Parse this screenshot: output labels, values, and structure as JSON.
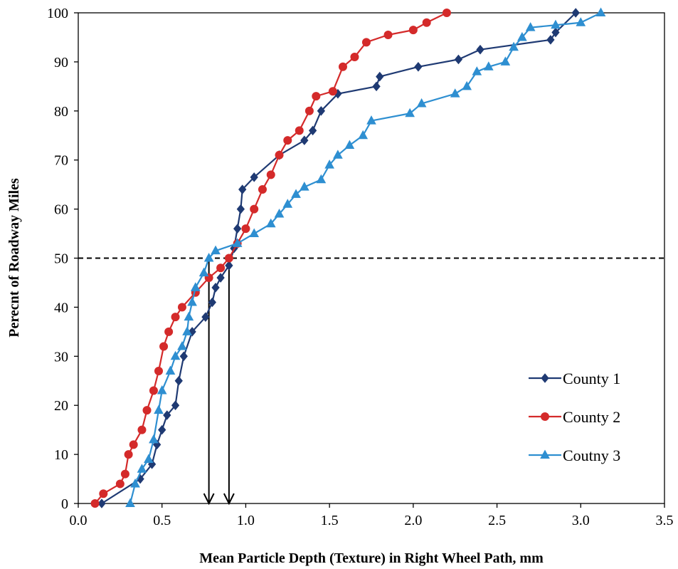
{
  "chart_data": {
    "type": "line",
    "xlabel": "Mean Particle Depth (Texture) in Right Wheel Path, mm",
    "ylabel": "Perecnt of Roadway Miles",
    "xlim": [
      0,
      3.5
    ],
    "ylim": [
      0,
      100
    ],
    "x_ticks": [
      "0.0",
      "0.5",
      "1.0",
      "1.5",
      "2.0",
      "2.5",
      "3.0",
      "3.5"
    ],
    "y_ticks": [
      "0",
      "10",
      "20",
      "30",
      "40",
      "50",
      "60",
      "70",
      "80",
      "90",
      "100"
    ],
    "grid": false,
    "legend_position": "bottom-right",
    "reference_line": {
      "y": 50,
      "style": "dashed"
    },
    "arrows": [
      {
        "x": 0.78,
        "from_y": 50,
        "to_y": 0
      },
      {
        "x": 0.9,
        "from_y": 50,
        "to_y": 0
      }
    ],
    "series": [
      {
        "name": "County 1",
        "color": "#1f3a73",
        "marker": "diamond",
        "points": [
          [
            0.14,
            0
          ],
          [
            0.37,
            5
          ],
          [
            0.44,
            8
          ],
          [
            0.47,
            12
          ],
          [
            0.5,
            15
          ],
          [
            0.53,
            18
          ],
          [
            0.58,
            20
          ],
          [
            0.6,
            25
          ],
          [
            0.63,
            30
          ],
          [
            0.68,
            35
          ],
          [
            0.76,
            38
          ],
          [
            0.8,
            41
          ],
          [
            0.82,
            44
          ],
          [
            0.85,
            46
          ],
          [
            0.9,
            48.5
          ],
          [
            0.93,
            52
          ],
          [
            0.95,
            56
          ],
          [
            0.97,
            60
          ],
          [
            0.98,
            64
          ],
          [
            1.05,
            66.5
          ],
          [
            1.2,
            71
          ],
          [
            1.35,
            74
          ],
          [
            1.4,
            76
          ],
          [
            1.45,
            80
          ],
          [
            1.55,
            83.5
          ],
          [
            1.78,
            85
          ],
          [
            1.8,
            87
          ],
          [
            2.03,
            89
          ],
          [
            2.27,
            90.5
          ],
          [
            2.4,
            92.5
          ],
          [
            2.82,
            94.5
          ],
          [
            2.85,
            96
          ],
          [
            2.97,
            100
          ]
        ]
      },
      {
        "name": "County 2",
        "color": "#d42a2a",
        "marker": "circle",
        "points": [
          [
            0.1,
            0
          ],
          [
            0.15,
            2
          ],
          [
            0.25,
            4
          ],
          [
            0.28,
            6
          ],
          [
            0.3,
            10
          ],
          [
            0.33,
            12
          ],
          [
            0.38,
            15
          ],
          [
            0.41,
            19
          ],
          [
            0.45,
            23
          ],
          [
            0.48,
            27
          ],
          [
            0.51,
            32
          ],
          [
            0.54,
            35
          ],
          [
            0.58,
            38
          ],
          [
            0.62,
            40
          ],
          [
            0.7,
            43
          ],
          [
            0.78,
            46
          ],
          [
            0.85,
            48
          ],
          [
            0.9,
            50
          ],
          [
            0.95,
            53
          ],
          [
            1.0,
            56
          ],
          [
            1.05,
            60
          ],
          [
            1.1,
            64
          ],
          [
            1.15,
            67
          ],
          [
            1.2,
            71
          ],
          [
            1.25,
            74
          ],
          [
            1.32,
            76
          ],
          [
            1.38,
            80
          ],
          [
            1.42,
            83
          ],
          [
            1.52,
            84
          ],
          [
            1.58,
            89
          ],
          [
            1.65,
            91
          ],
          [
            1.72,
            94
          ],
          [
            1.85,
            95.5
          ],
          [
            2.0,
            96.5
          ],
          [
            2.08,
            98
          ],
          [
            2.2,
            100
          ]
        ]
      },
      {
        "name": "Coutny 3",
        "color": "#2e8fd1",
        "marker": "triangle",
        "points": [
          [
            0.31,
            0
          ],
          [
            0.34,
            4
          ],
          [
            0.38,
            7
          ],
          [
            0.42,
            9
          ],
          [
            0.45,
            13
          ],
          [
            0.48,
            19
          ],
          [
            0.5,
            23
          ],
          [
            0.55,
            27
          ],
          [
            0.58,
            30
          ],
          [
            0.62,
            32
          ],
          [
            0.65,
            35
          ],
          [
            0.66,
            38
          ],
          [
            0.68,
            41
          ],
          [
            0.7,
            44
          ],
          [
            0.75,
            47
          ],
          [
            0.78,
            50
          ],
          [
            0.82,
            51.5
          ],
          [
            0.95,
            53
          ],
          [
            1.05,
            55
          ],
          [
            1.15,
            57
          ],
          [
            1.2,
            59
          ],
          [
            1.25,
            61
          ],
          [
            1.3,
            63
          ],
          [
            1.35,
            64.5
          ],
          [
            1.45,
            66
          ],
          [
            1.5,
            69
          ],
          [
            1.55,
            71
          ],
          [
            1.62,
            73
          ],
          [
            1.7,
            75
          ],
          [
            1.75,
            78
          ],
          [
            1.98,
            79.5
          ],
          [
            2.05,
            81.5
          ],
          [
            2.25,
            83.5
          ],
          [
            2.32,
            85
          ],
          [
            2.38,
            88
          ],
          [
            2.45,
            89
          ],
          [
            2.55,
            90
          ],
          [
            2.6,
            93
          ],
          [
            2.65,
            95
          ],
          [
            2.7,
            97
          ],
          [
            2.85,
            97.5
          ],
          [
            3.0,
            98
          ],
          [
            3.12,
            100
          ]
        ]
      }
    ]
  }
}
